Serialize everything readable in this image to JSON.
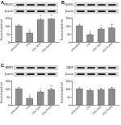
{
  "chart_data": [
    {
      "type": "bar",
      "title": "A",
      "blot_labels": [
        "PRDX1",
        "β-actin"
      ],
      "y_label": "Percent of control level",
      "categories": [
        "Untreated",
        "LPS",
        "LPS+AGE",
        "LPS+Pcdrg"
      ],
      "values": [
        100,
        55,
        138,
        143
      ],
      "errors": [
        8,
        7,
        10,
        9
      ],
      "significance": [
        null,
        "#",
        "*",
        "**"
      ],
      "color": "#8c8c8c",
      "ylim": [
        0,
        150
      ],
      "yticks": [
        0,
        50,
        100,
        150
      ]
    },
    {
      "type": "bar",
      "title": "B",
      "blot_labels": [
        "GLRX1",
        "β-actin"
      ],
      "y_label": "Percent of control level",
      "categories": [
        "Untreated",
        "LPS",
        "LPS+AGE",
        "LPS+Pcdrg"
      ],
      "values": [
        100,
        45,
        80,
        86
      ],
      "errors": [
        7,
        6,
        8,
        7
      ],
      "significance": [
        null,
        "#",
        "*",
        "**"
      ],
      "color": "#8c8c8c",
      "ylim": [
        0,
        150
      ],
      "yticks": [
        0,
        50,
        100,
        150
      ]
    },
    {
      "type": "bar",
      "title": "C",
      "blot_labels": [
        "BNIP3",
        "β-actin"
      ],
      "y_label": "Percent of control level",
      "categories": [
        "Untreated",
        "LPS",
        "LPS+AGE",
        "LPS+Pcdrg"
      ],
      "values": [
        100,
        40,
        80,
        95
      ],
      "errors": [
        8,
        6,
        8,
        8
      ],
      "significance": [
        null,
        "#",
        "*",
        "**"
      ],
      "color": "#8c8c8c",
      "ylim": [
        0,
        150
      ],
      "yticks": [
        0,
        50,
        100,
        150
      ]
    },
    {
      "type": "bar",
      "blot_labels": [
        "CADP",
        "β-actin"
      ],
      "y_label": "Percent of control level",
      "categories": [
        "Untreated",
        "LPS",
        "LPS+AGE",
        "LPS+Pcdrg"
      ],
      "values": [
        100,
        90,
        95,
        100
      ],
      "errors": [
        7,
        8,
        7,
        8
      ],
      "color": "#8c8c8c",
      "ylim": [
        0,
        150
      ],
      "yticks": [
        0,
        50,
        100,
        150
      ]
    }
  ]
}
